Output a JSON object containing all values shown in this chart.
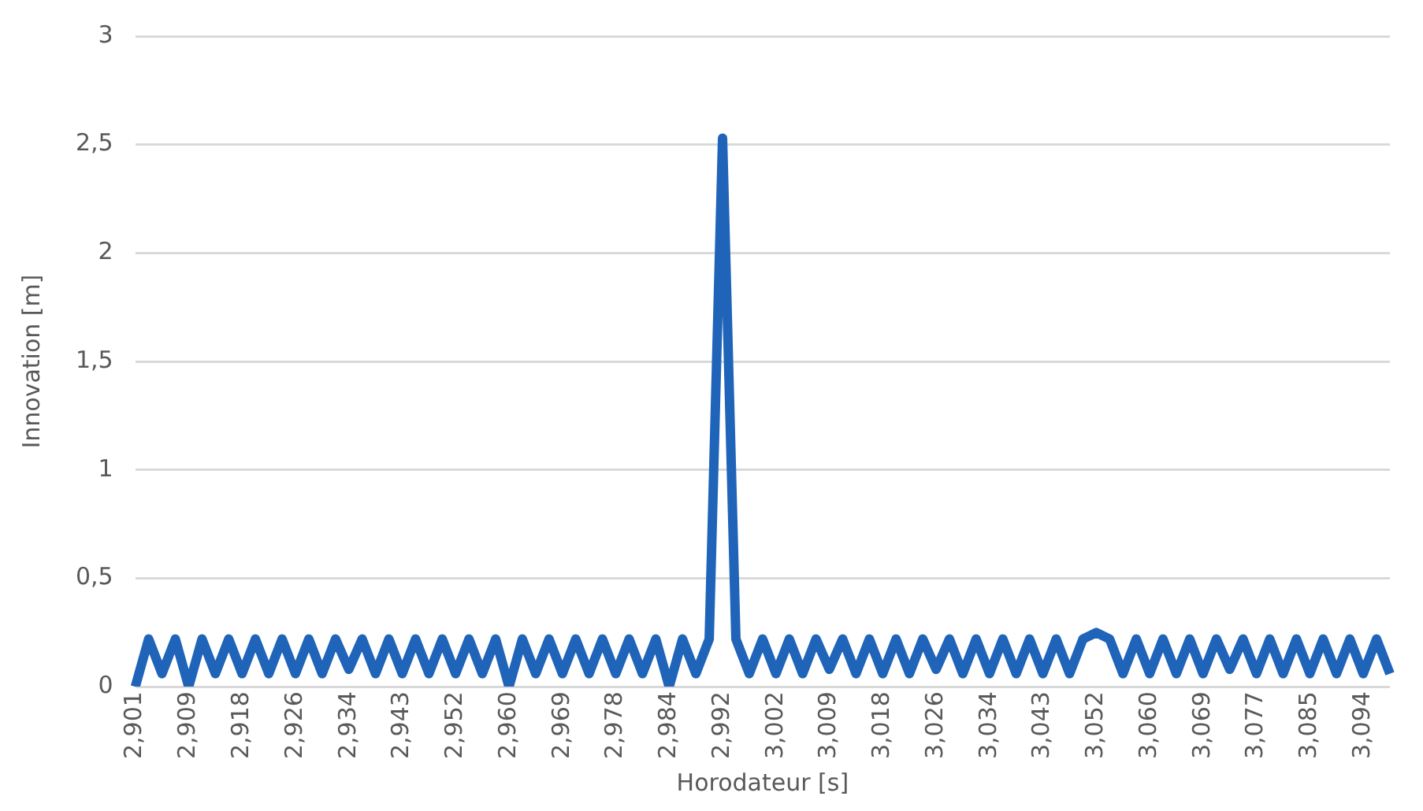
{
  "chart_data": {
    "type": "line",
    "xlabel": "Horodateur [s]",
    "ylabel": "Innovation [m]",
    "categories": [
      "2,901",
      null,
      null,
      null,
      "2,909",
      null,
      null,
      null,
      "2,918",
      null,
      null,
      null,
      "2,926",
      null,
      null,
      null,
      "2,934",
      null,
      null,
      null,
      "2,943",
      null,
      null,
      null,
      "2,952",
      null,
      null,
      null,
      "2,960",
      null,
      null,
      null,
      "2,969",
      null,
      null,
      null,
      "2,978",
      null,
      null,
      null,
      "2,984",
      null,
      null,
      null,
      "2,992",
      null,
      null,
      null,
      "3,002",
      null,
      null,
      null,
      "3,009",
      null,
      null,
      null,
      "3,018",
      null,
      null,
      null,
      "3,026",
      null,
      null,
      null,
      "3,034",
      null,
      null,
      null,
      "3,043",
      null,
      null,
      null,
      "3,052",
      null,
      null,
      null,
      "3,060",
      null,
      null,
      null,
      "3,069",
      null,
      null,
      null,
      "3,077",
      null,
      null,
      null,
      "3,085",
      null,
      null,
      null,
      "3,094",
      null,
      null
    ],
    "series": [
      {
        "color": "#1f64b8",
        "values": [
          0,
          0.22,
          0.06,
          0.22,
          0,
          0.22,
          0.06,
          0.22,
          0.06,
          0.22,
          0.06,
          0.22,
          0.06,
          0.22,
          0.06,
          0.22,
          0.08,
          0.22,
          0.06,
          0.22,
          0.06,
          0.22,
          0.06,
          0.22,
          0.06,
          0.22,
          0.06,
          0.22,
          0,
          0.22,
          0.06,
          0.22,
          0.06,
          0.22,
          0.06,
          0.22,
          0.06,
          0.22,
          0.06,
          0.22,
          0,
          0.22,
          0.06,
          0.22,
          2.53,
          0.22,
          0.06,
          0.22,
          0.06,
          0.22,
          0.06,
          0.22,
          0.08,
          0.22,
          0.06,
          0.22,
          0.06,
          0.22,
          0.06,
          0.22,
          0.08,
          0.22,
          0.06,
          0.22,
          0.06,
          0.22,
          0.06,
          0.22,
          0.06,
          0.22,
          0.06,
          0.22,
          0.25,
          0.22,
          0.06,
          0.22,
          0.06,
          0.22,
          0.06,
          0.22,
          0.06,
          0.22,
          0.08,
          0.22,
          0.06,
          0.22,
          0.06,
          0.22,
          0.06,
          0.22,
          0.06,
          0.22,
          0.06,
          0.22,
          0.06
        ]
      }
    ],
    "ylim": [
      0,
      3
    ],
    "yticks": [
      {
        "value": 0,
        "label": "0"
      },
      {
        "value": 0.5,
        "label": "0,5"
      },
      {
        "value": 1,
        "label": "1"
      },
      {
        "value": 1.5,
        "label": "1,5"
      },
      {
        "value": 2,
        "label": "2"
      },
      {
        "value": 2.5,
        "label": "2,5"
      },
      {
        "value": 3,
        "label": "3"
      }
    ],
    "grid": "y",
    "legend": false,
    "marker": "none",
    "line_style": "solid"
  }
}
